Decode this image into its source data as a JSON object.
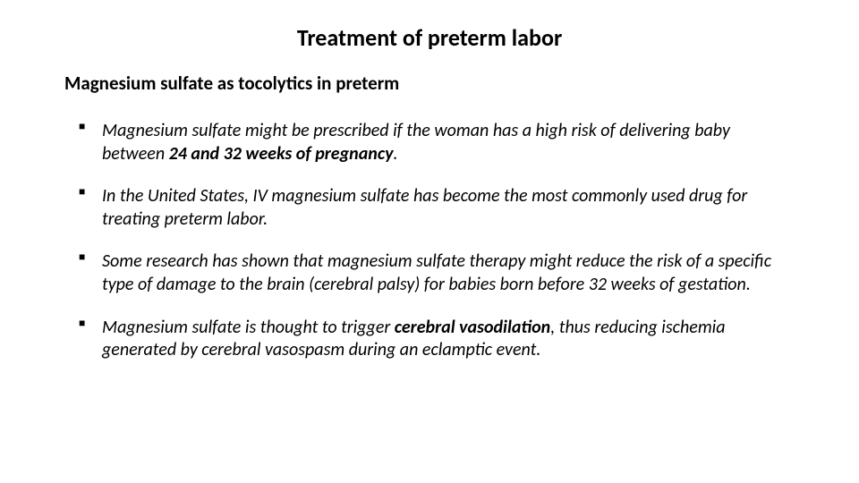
{
  "colors": {
    "background": "#ffffff",
    "text": "#000000",
    "bullet": "#000000"
  },
  "typography": {
    "title_fontsize": 26,
    "subtitle_fontsize": 21,
    "body_fontsize": 20,
    "font_family": "Calibri"
  },
  "title": "Treatment of preterm labor",
  "subtitle": "Magnesium sulfate as tocolytics in preterm",
  "bullets": {
    "b0": {
      "t0": "Magnesium sulfate might be prescribed if the woman has a high risk of delivering baby between ",
      "t1": "24 and 32 weeks of pregnancy",
      "t2": "."
    },
    "b1": {
      "t0": "In the United States, IV magnesium sulfate has become the most commonly used drug for treating preterm labor."
    },
    "b2": {
      "t0": "Some research has shown that magnesium sulfate therapy might reduce the risk of a specific type of damage to the brain (cerebral palsy) for babies born before 32 weeks of gestation."
    },
    "b3": {
      "t0": "Magnesium sulfate is thought to trigger ",
      "t1": "cerebral vasodilation",
      "t2": ", thus reducing ischemia generated by cerebral vasospasm during an eclamptic event."
    }
  }
}
